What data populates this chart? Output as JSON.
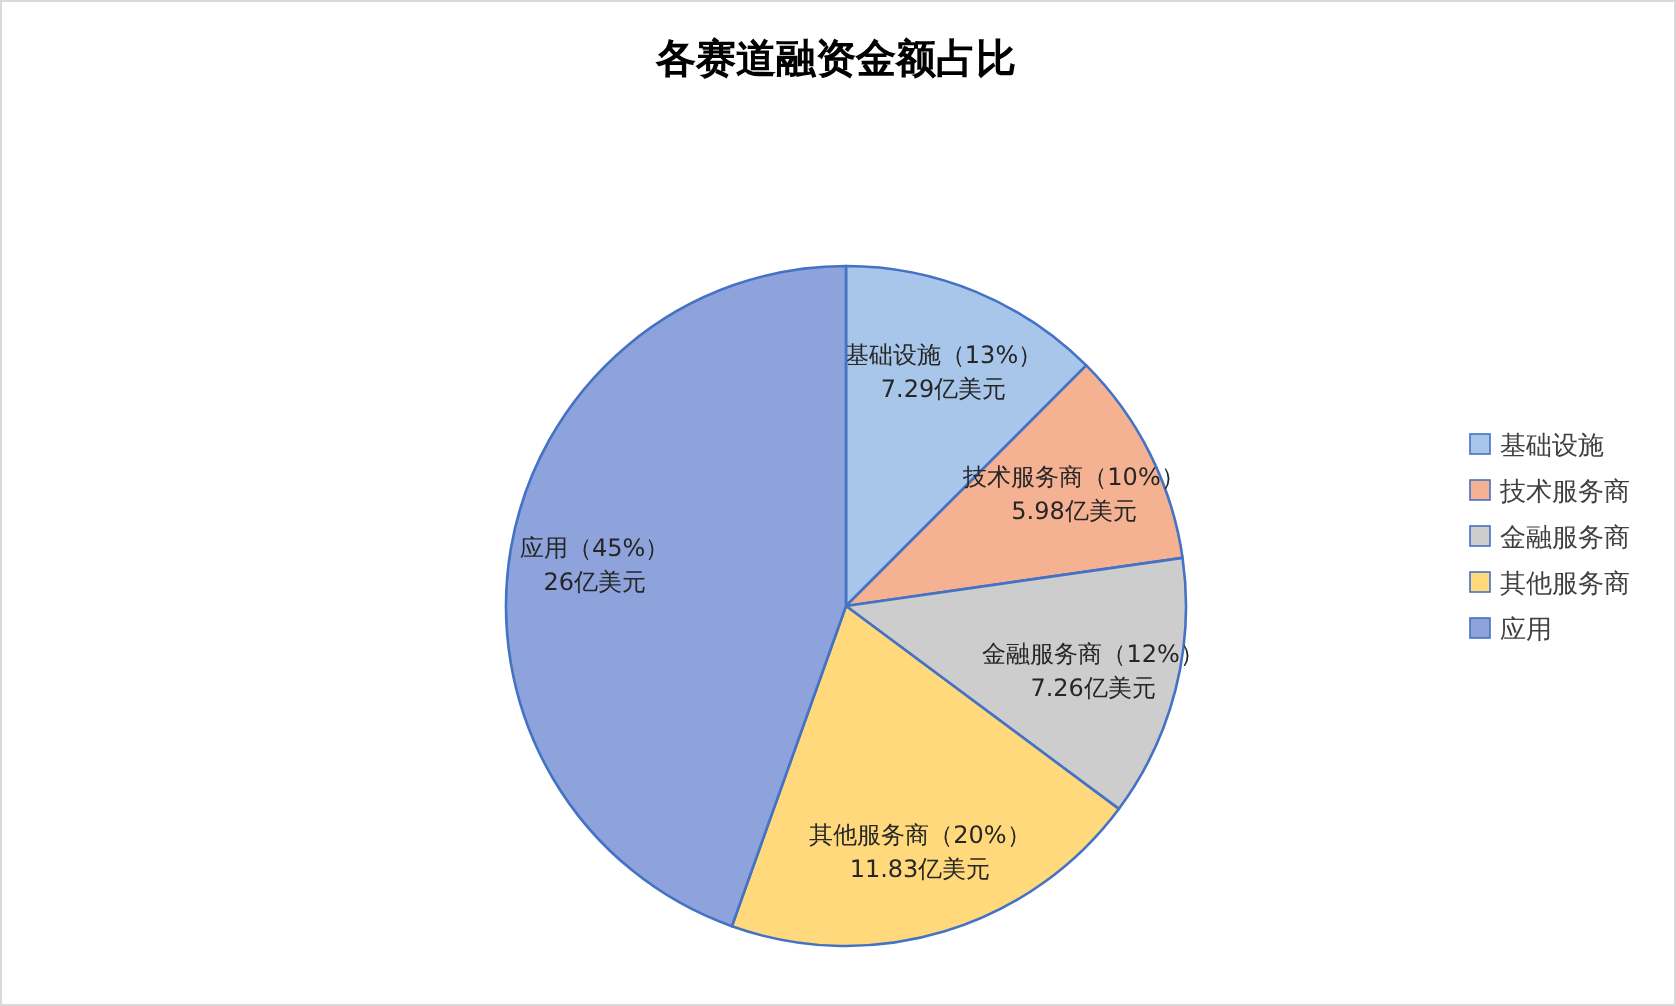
{
  "chart_data": {
    "type": "pie",
    "title": "各赛道融资金额占比",
    "categories": [
      "基础设施",
      "技术服务商",
      "金融服务商",
      "其他服务商",
      "应用"
    ],
    "values": [
      7.29,
      5.98,
      7.26,
      11.83,
      26
    ],
    "colors": [
      "#a8c6ea",
      "#f5b293",
      "#cdcdcd",
      "#ffd97c",
      "#8ea3dc"
    ],
    "value_labels": [
      "基础设施（13%）\n7.29亿美元",
      "技术服务商（10%）\n5.98亿美元",
      "金融服务商（12%）\n7.26亿美元",
      "其他服务商（20%）\n11.83亿美元",
      "应用（45%）\n26亿美元"
    ],
    "legend": "right"
  }
}
